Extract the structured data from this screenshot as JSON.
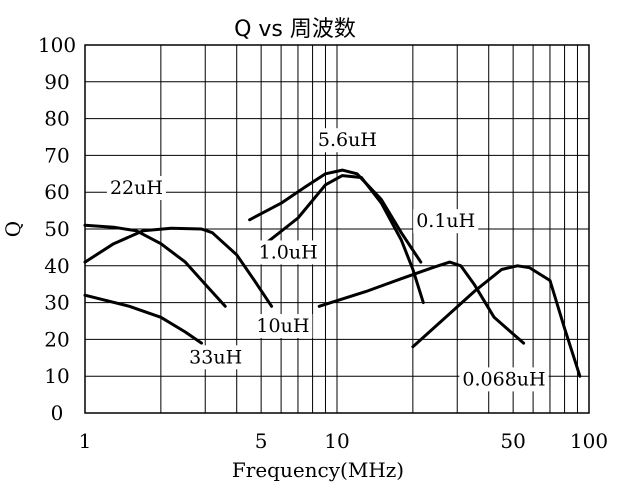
{
  "chart_data": {
    "type": "line",
    "title": "Q vs 周波数",
    "xlabel": "Frequency(MHz)",
    "ylabel": "Q",
    "xscale": "log",
    "xlim": [
      1,
      100
    ],
    "ylim": [
      0,
      100
    ],
    "x_ticks": [
      1,
      5,
      10,
      50,
      100
    ],
    "x_tick_labels": [
      "1",
      "5",
      "10",
      "50",
      "100"
    ],
    "x_grid": [
      1,
      2,
      3,
      4,
      5,
      6,
      7,
      8,
      9,
      10,
      20,
      30,
      40,
      50,
      60,
      70,
      80,
      90,
      100
    ],
    "y_ticks": [
      0,
      10,
      20,
      30,
      40,
      50,
      60,
      70,
      80,
      90,
      100
    ],
    "y_tick_labels": [
      "0",
      "10",
      "20",
      "30",
      "40",
      "50",
      "60",
      "70",
      "80",
      "90",
      "100"
    ],
    "grid": true,
    "legend": "none",
    "series": [
      {
        "name": "33uH",
        "points": [
          [
            1.0,
            32
          ],
          [
            1.5,
            29
          ],
          [
            2.0,
            26
          ],
          [
            2.5,
            22
          ],
          [
            2.9,
            19
          ]
        ],
        "label_at": [
          3.3,
          13.5
        ]
      },
      {
        "name": "22uH",
        "points": [
          [
            1.0,
            51
          ],
          [
            1.3,
            50.5
          ],
          [
            1.6,
            49.5
          ],
          [
            2.0,
            46
          ],
          [
            2.5,
            41
          ],
          [
            3.0,
            35
          ],
          [
            3.6,
            29
          ]
        ],
        "label_at": [
          1.6,
          59.5
        ]
      },
      {
        "name": "10uH",
        "points": [
          [
            1.0,
            41
          ],
          [
            1.3,
            46
          ],
          [
            1.7,
            49.5
          ],
          [
            2.2,
            50.2
          ],
          [
            2.9,
            50
          ],
          [
            3.2,
            49
          ],
          [
            4.0,
            43
          ],
          [
            4.7,
            36
          ],
          [
            5.5,
            29
          ]
        ],
        "label_at": [
          6.1,
          22
        ]
      },
      {
        "name": "5.6uH",
        "points": [
          [
            4.5,
            52.5
          ],
          [
            6.0,
            57
          ],
          [
            7.5,
            61.5
          ],
          [
            9.0,
            65
          ],
          [
            10.5,
            66
          ],
          [
            12.0,
            65
          ],
          [
            15.0,
            58
          ],
          [
            18.0,
            49
          ],
          [
            21.5,
            41
          ]
        ],
        "label_at": [
          11.0,
          72.5
        ]
      },
      {
        "name": "1.0uH",
        "points": [
          [
            5.2,
            46
          ],
          [
            7.0,
            53
          ],
          [
            9.0,
            62
          ],
          [
            10.5,
            64.5
          ],
          [
            12.5,
            64
          ],
          [
            15.0,
            57
          ],
          [
            18.0,
            47
          ],
          [
            20.0,
            39
          ],
          [
            22.0,
            30
          ]
        ],
        "label_at": [
          6.4,
          42
        ]
      },
      {
        "name": "0.1uH",
        "points": [
          [
            8.5,
            29
          ],
          [
            13.0,
            33
          ],
          [
            18.0,
            36.5
          ],
          [
            24.0,
            39.5
          ],
          [
            28.0,
            41
          ],
          [
            31.0,
            40
          ],
          [
            35.0,
            35
          ],
          [
            42.0,
            26
          ],
          [
            55.0,
            19
          ]
        ],
        "label_at": [
          27.0,
          50.5
        ]
      },
      {
        "name": "0.068uH",
        "points": [
          [
            20.0,
            18
          ],
          [
            27.0,
            26
          ],
          [
            35.0,
            33
          ],
          [
            45.0,
            39
          ],
          [
            52.0,
            40
          ],
          [
            58.0,
            39.5
          ],
          [
            70.0,
            36
          ],
          [
            80.0,
            23
          ],
          [
            92.0,
            10
          ]
        ],
        "label_at": [
          46.0,
          7.5
        ]
      }
    ]
  }
}
